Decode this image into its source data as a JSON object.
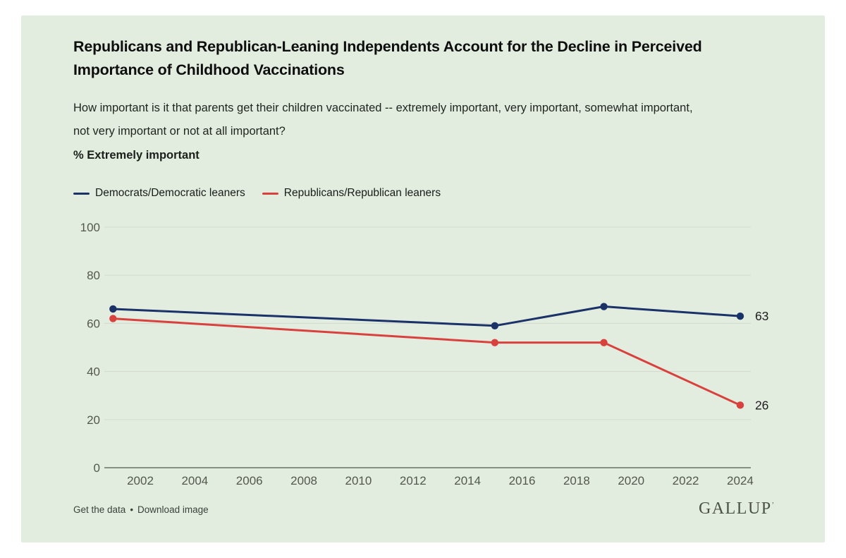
{
  "header": {
    "title": "Republicans and Republican-Leaning Independents Account for the Decline in Perceived Importance of Childhood Vaccinations",
    "question": "How important is it that parents get their children vaccinated -- extremely important, very important, somewhat important, not very important or not at all important?",
    "measure": "% Extremely important"
  },
  "legend": {
    "items": [
      {
        "label": "Democrats/Democratic leaners"
      },
      {
        "label": "Republicans/Republican leaners"
      }
    ]
  },
  "footer": {
    "get_data": "Get the data",
    "separator": "•",
    "download": "Download image",
    "brand": "GALLUP",
    "brand_mark": "ʼ"
  },
  "colors": {
    "card_bg": "#e3eddf",
    "democrat_line": "#1a3268",
    "republican_line": "#d8413d",
    "gridline": "#d4dbce",
    "axis_line": "#6b7066",
    "tick_label": "#53574e",
    "end_label": "#1d1d1d"
  },
  "chart_data": {
    "type": "line",
    "x": [
      2001,
      2015,
      2019,
      2024
    ],
    "series": [
      {
        "name": "Democrats/Democratic leaners",
        "color": "#1a3268",
        "values": [
          66,
          59,
          67,
          63
        ],
        "end_label": "63"
      },
      {
        "name": "Republicans/Republican leaners",
        "color": "#d8413d",
        "values": [
          62,
          52,
          52,
          26
        ],
        "end_label": "26"
      }
    ],
    "title": "% Extremely important",
    "xlabel": "",
    "ylabel": "",
    "ylim": [
      0,
      100
    ],
    "yticks": [
      0,
      20,
      40,
      60,
      80,
      100
    ],
    "xticks": [
      2002,
      2004,
      2006,
      2008,
      2010,
      2012,
      2014,
      2016,
      2018,
      2020,
      2022,
      2024
    ],
    "grid": true,
    "legend_position": "top-left"
  }
}
